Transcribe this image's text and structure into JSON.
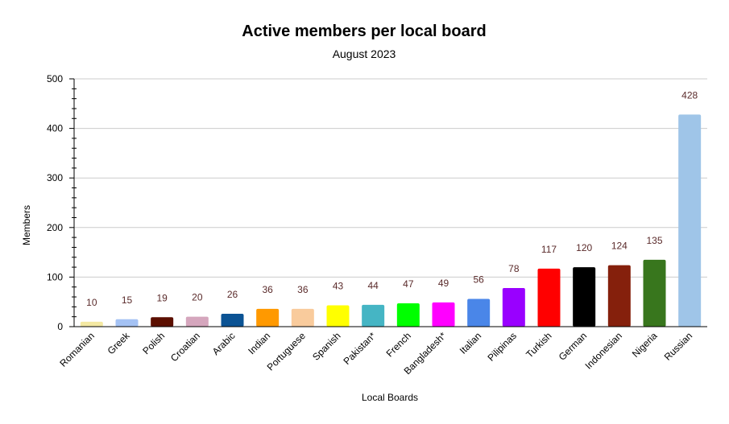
{
  "chart_data": {
    "type": "bar",
    "title": "Active members per local board",
    "subtitle": "August 2023",
    "xlabel": "Local Boards",
    "ylabel": "Members",
    "ylim": [
      0,
      500
    ],
    "yticks": [
      0,
      100,
      200,
      300,
      400,
      500
    ],
    "grid": true,
    "legend": "none",
    "categories": [
      "Romanian",
      "Greek",
      "Polish",
      "Croatian",
      "Arabic",
      "Indian",
      "Portuguese",
      "Spanish",
      "Pakistan*",
      "French",
      "Bangladesh*",
      "Italian",
      "Pilipinas",
      "Turkish",
      "German",
      "Indonesian",
      "Nigeria",
      "Russian"
    ],
    "values": [
      10,
      15,
      19,
      20,
      26,
      36,
      36,
      43,
      44,
      47,
      49,
      56,
      78,
      117,
      120,
      124,
      135,
      428
    ],
    "colors": [
      "#f4e9a3",
      "#a4c2f4",
      "#5b0f00",
      "#d5a6bd",
      "#0b5394",
      "#ff9900",
      "#f9cb9c",
      "#ffff00",
      "#45b5c4",
      "#00ff00",
      "#ff00ff",
      "#4a86e8",
      "#9900ff",
      "#ff0000",
      "#000000",
      "#85200c",
      "#38761d",
      "#9fc5e8"
    ]
  }
}
